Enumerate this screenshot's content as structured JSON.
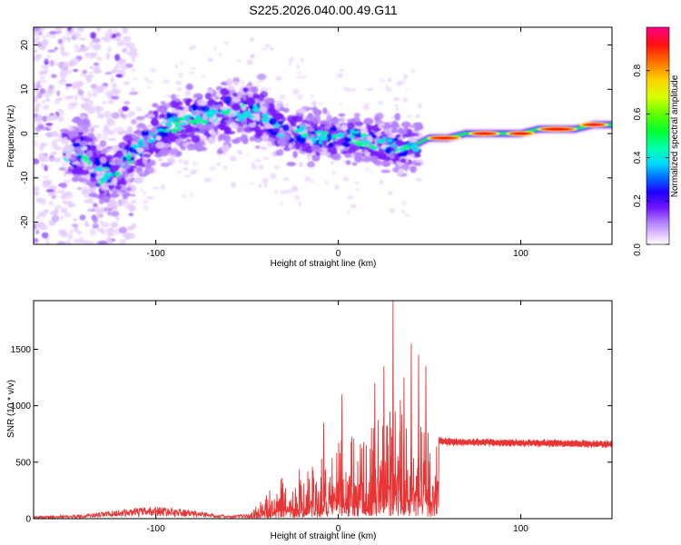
{
  "title": "S225.2026.040.00.49.G11",
  "chart_data": [
    {
      "type": "heatmap",
      "xlabel": "Height of straight line (km)",
      "ylabel": "Frequency (Hz)",
      "xlim": [
        -167,
        150
      ],
      "ylim": [
        -25,
        24
      ],
      "xticks": [
        "-100",
        "0",
        "100"
      ],
      "yticks": [
        "20",
        "10",
        "0",
        "-10",
        "-20"
      ],
      "grid": false,
      "ridge": {
        "x": [
          -150,
          -140,
          -130,
          -120,
          -110,
          -100,
          -90,
          -80,
          -70,
          -60,
          -50,
          -40,
          -30,
          -20,
          -10,
          0,
          10,
          20,
          30,
          40,
          45,
          50,
          60,
          70,
          80,
          90,
          100,
          110,
          120,
          130,
          140,
          150
        ],
        "y": [
          -5,
          -4,
          -10,
          -8,
          -3,
          0,
          2,
          3,
          4,
          5,
          5,
          4,
          0,
          0,
          -1,
          -1,
          -1,
          -2,
          -3,
          -3,
          -2,
          -1,
          -1,
          0,
          0,
          0,
          0,
          1,
          1,
          1,
          2,
          2
        ]
      },
      "colorbar": {
        "label": "Normalized spectral amplitude",
        "range": [
          0.0,
          1.0
        ],
        "ticks": [
          "0.0",
          "0.2",
          "0.4",
          "0.6",
          "0.8"
        ]
      },
      "colors": [
        "#ffffff",
        "#e6ccff",
        "#b380ff",
        "#7a1eff",
        "#3a00ff",
        "#0000ff",
        "#0096ff",
        "#00e6e6",
        "#00ff7f",
        "#00ff00",
        "#bfff00",
        "#ffff00",
        "#ffb000",
        "#ff5000",
        "#ff0000",
        "#ff0088"
      ]
    },
    {
      "type": "line",
      "xlabel": "Height of straight line (km)",
      "ylabel": "SNR (10 * v/v)",
      "xlim": [
        -167,
        150
      ],
      "ylim": [
        0,
        1930
      ],
      "xticks": [
        "-100",
        "0",
        "100"
      ],
      "yticks": [
        "0",
        "500",
        "1000",
        "1500"
      ],
      "grid": false,
      "color": "#e83434",
      "envelope": {
        "x": [
          -167,
          -140,
          -120,
          -100,
          -80,
          -60,
          -50,
          -45,
          -40,
          -35,
          -30,
          -25,
          -20,
          -15,
          -10,
          -5,
          0,
          5,
          10,
          15,
          20,
          25,
          30,
          35,
          40,
          45,
          50,
          55,
          60,
          100,
          150
        ],
        "y": [
          20,
          35,
          80,
          110,
          75,
          25,
          45,
          110,
          200,
          320,
          380,
          450,
          460,
          500,
          550,
          600,
          700,
          750,
          800,
          850,
          900,
          950,
          1000,
          1000,
          900,
          850,
          700,
          690,
          680,
          670,
          660
        ]
      }
    }
  ]
}
